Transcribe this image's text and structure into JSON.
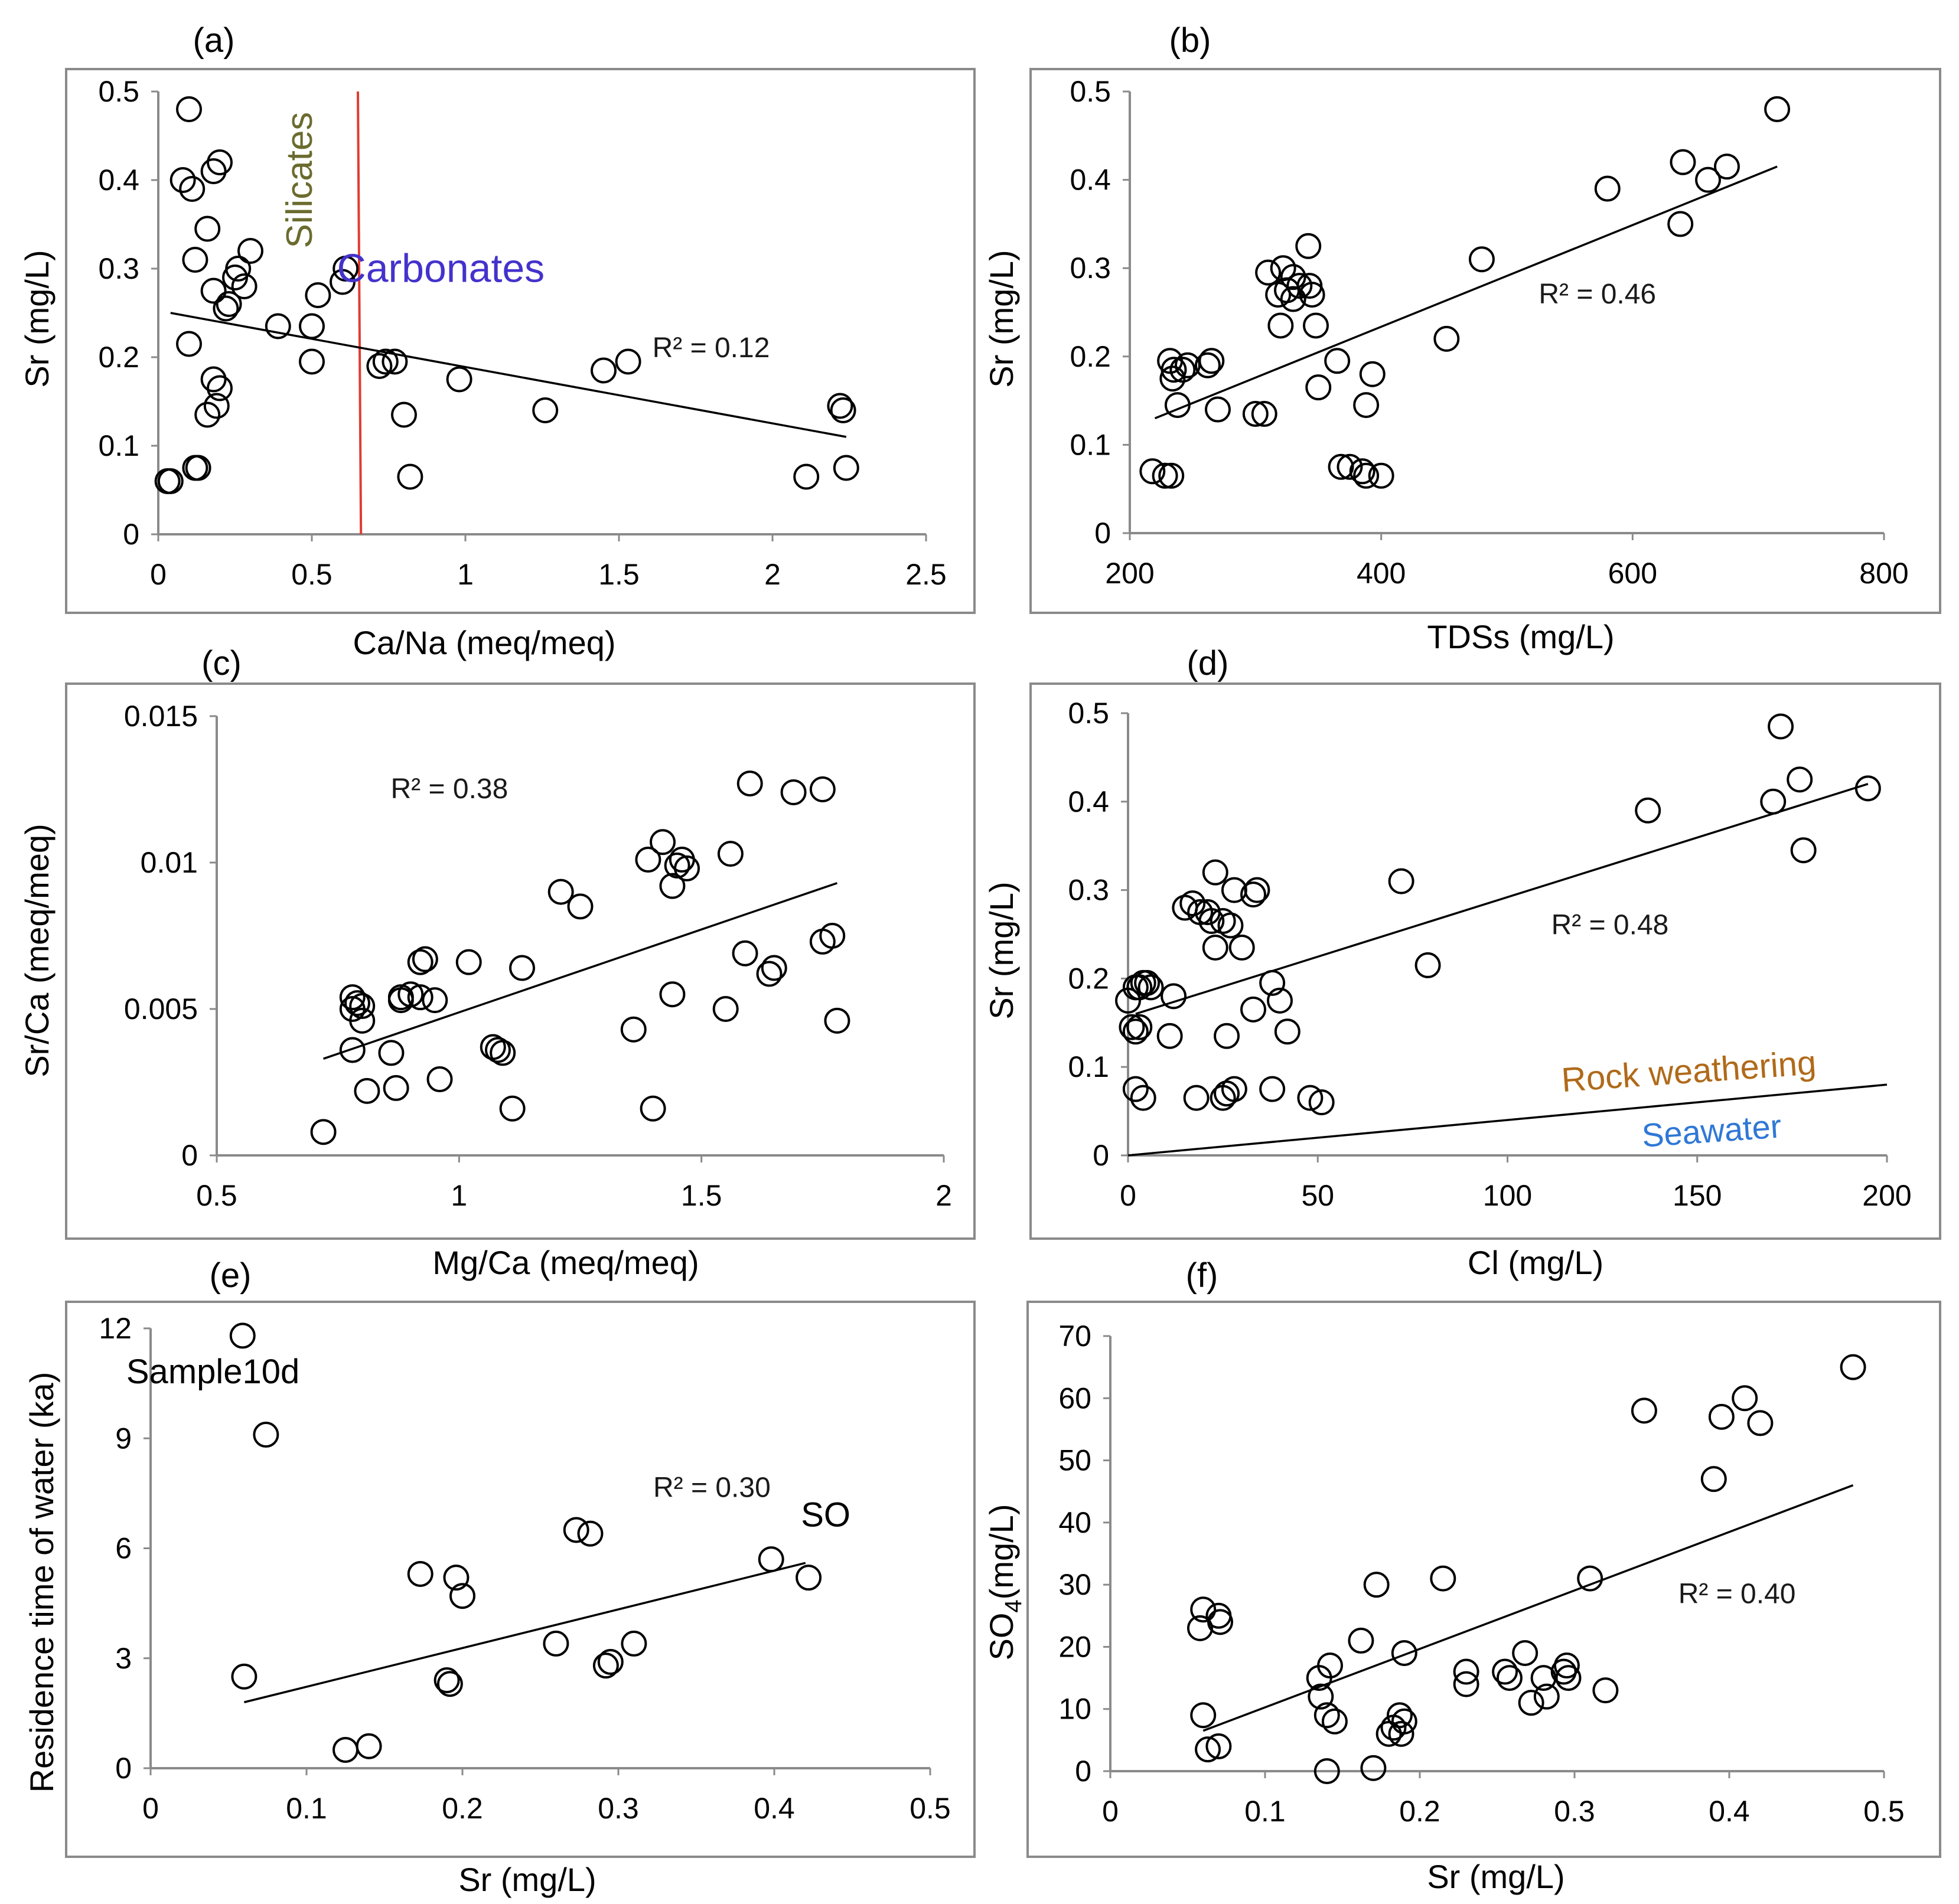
{
  "chart_data": [
    {
      "id": "a",
      "type": "scatter",
      "panel_label": "(a)",
      "xlabel": "Ca/Na (meq/meq)",
      "ylabel": "Sr (mg/L)",
      "xlim": [
        0,
        2.5
      ],
      "ylim": [
        0,
        0.5
      ],
      "xticks": [
        0,
        0.5,
        1,
        1.5,
        2,
        2.5
      ],
      "xtick_labels": [
        "0",
        "0.5",
        "1",
        "1.5",
        "2",
        "2.5"
      ],
      "yticks": [
        0,
        0.1,
        0.2,
        0.3,
        0.4,
        0.5
      ],
      "ytick_labels": [
        "0",
        "0.1",
        "0.2",
        "0.3",
        "0.4",
        "0.5"
      ],
      "r2_label": "R² = 0.12",
      "r2_pos": [
        1.8,
        0.2
      ],
      "trendline": {
        "x": [
          0.04,
          2.24
        ],
        "y": [
          0.25,
          0.11
        ]
      },
      "points": {
        "x": [
          0.1,
          0.08,
          0.11,
          0.2,
          0.18,
          0.16,
          0.3,
          0.12,
          0.26,
          0.25,
          0.28,
          0.18,
          0.23,
          0.22,
          0.39,
          0.5,
          0.52,
          0.6,
          0.61,
          0.1,
          0.5,
          0.18,
          0.2,
          0.16,
          0.19,
          0.12,
          0.13,
          0.03,
          0.04,
          0.72,
          0.74,
          0.77,
          0.8,
          0.82,
          0.98,
          1.26,
          1.45,
          1.53,
          2.22,
          2.23,
          2.11,
          2.24
        ],
        "y": [
          0.48,
          0.4,
          0.39,
          0.42,
          0.41,
          0.345,
          0.32,
          0.31,
          0.3,
          0.29,
          0.28,
          0.275,
          0.26,
          0.255,
          0.235,
          0.235,
          0.27,
          0.285,
          0.3,
          0.215,
          0.195,
          0.175,
          0.165,
          0.135,
          0.145,
          0.075,
          0.075,
          0.06,
          0.06,
          0.19,
          0.195,
          0.195,
          0.135,
          0.065,
          0.175,
          0.14,
          0.185,
          0.195,
          0.145,
          0.14,
          0.065,
          0.075
        ]
      },
      "annotations": [
        {
          "text": "Silicates",
          "x": 0.5,
          "y": 0.4,
          "rotate": -90,
          "color": "#6b6b2f"
        },
        {
          "text": "Carbonates",
          "x": 0.92,
          "y": 0.285,
          "rotate": 0,
          "color": "#4432cc"
        }
      ],
      "divider": {
        "x": [
          0.65,
          0.66
        ],
        "y": [
          0.5,
          0
        ],
        "color": "#e03c31"
      }
    },
    {
      "id": "b",
      "type": "scatter",
      "panel_label": "(b)",
      "xlabel": "TDSs (mg/L)",
      "ylabel": "Sr (mg/L)",
      "xlim": [
        200,
        800
      ],
      "ylim": [
        0,
        0.5
      ],
      "xticks": [
        200,
        400,
        600,
        800
      ],
      "xtick_labels": [
        "200",
        "400",
        "600",
        "800"
      ],
      "yticks": [
        0,
        0.1,
        0.2,
        0.3,
        0.4,
        0.5
      ],
      "ytick_labels": [
        "0",
        "0.1",
        "0.2",
        "0.3",
        "0.4",
        "0.5"
      ],
      "r2_label": "R² = 0.46",
      "r2_pos": [
        572,
        0.26
      ],
      "trendline": {
        "x": [
          220,
          715
        ],
        "y": [
          0.13,
          0.415
        ]
      },
      "points": {
        "x": [
          715,
          640,
          675,
          660,
          580,
          638,
          480,
          452,
          310,
          322,
          330,
          335,
          342,
          325,
          318,
          330,
          345,
          348,
          343,
          320,
          232,
          246,
          235,
          242,
          262,
          265,
          234,
          238,
          270,
          300,
          307,
          350,
          365,
          393,
          388,
          368,
          375,
          385,
          388,
          400,
          218,
          228,
          233
        ],
        "y": [
          0.48,
          0.42,
          0.415,
          0.4,
          0.39,
          0.35,
          0.31,
          0.22,
          0.295,
          0.3,
          0.29,
          0.28,
          0.325,
          0.275,
          0.27,
          0.265,
          0.27,
          0.235,
          0.28,
          0.235,
          0.195,
          0.19,
          0.185,
          0.185,
          0.19,
          0.195,
          0.175,
          0.145,
          0.14,
          0.135,
          0.135,
          0.165,
          0.195,
          0.18,
          0.145,
          0.075,
          0.075,
          0.07,
          0.065,
          0.065,
          0.07,
          0.065,
          0.065
        ]
      }
    },
    {
      "id": "c",
      "type": "scatter",
      "panel_label": "(c)",
      "xlabel": "Mg/Ca (meq/meq)",
      "ylabel": "Sr/Ca (meq/meq)",
      "xlim": [
        0.5,
        2
      ],
      "ylim": [
        0,
        0.015
      ],
      "xticks": [
        0.5,
        1,
        1.5,
        2
      ],
      "xtick_labels": [
        "0.5",
        "1",
        "1.5",
        "2"
      ],
      "yticks": [
        0,
        0.005,
        0.01,
        0.015
      ],
      "ytick_labels": [
        "0",
        "0.005",
        "0.01",
        "0.015"
      ],
      "r2_label": "R² = 0.38",
      "r2_pos": [
        0.98,
        0.0122
      ],
      "trendline": {
        "x": [
          0.72,
          1.78
        ],
        "y": [
          0.0033,
          0.0093
        ]
      },
      "points": {
        "x": [
          0.72,
          0.78,
          0.8,
          0.78,
          0.79,
          0.8,
          0.78,
          0.86,
          0.88,
          0.92,
          0.93,
          0.95,
          1.02,
          0.88,
          0.92,
          0.9,
          1.13,
          1.21,
          1.25,
          1.09,
          1.08,
          1.07,
          1.11,
          0.96,
          0.81,
          0.87,
          1.36,
          1.44,
          1.4,
          1.46,
          1.47,
          1.45,
          1.42,
          1.44,
          1.39,
          1.56,
          1.6,
          1.59,
          1.69,
          1.75,
          1.55,
          1.64,
          1.65,
          1.75,
          1.77,
          1.78
        ],
        "y": [
          0.0008,
          0.0036,
          0.0046,
          0.0054,
          0.0052,
          0.0051,
          0.005,
          0.0035,
          0.0053,
          0.0054,
          0.0067,
          0.0053,
          0.0066,
          0.0054,
          0.0066,
          0.0055,
          0.0064,
          0.009,
          0.0085,
          0.0035,
          0.0036,
          0.0037,
          0.0016,
          0.0026,
          0.0022,
          0.0023,
          0.0043,
          0.0055,
          0.0016,
          0.0101,
          0.0098,
          0.0099,
          0.0107,
          0.0092,
          0.0101,
          0.0103,
          0.0127,
          0.0069,
          0.0124,
          0.0125,
          0.005,
          0.0062,
          0.0064,
          0.0073,
          0.0075,
          0.0046
        ]
      }
    },
    {
      "id": "d",
      "type": "scatter",
      "panel_label": "(d)",
      "xlabel": "Cl (mg/L)",
      "ylabel": "Sr (mg/L)",
      "xlim": [
        0,
        200
      ],
      "ylim": [
        0,
        0.5
      ],
      "xticks": [
        0,
        50,
        100,
        150,
        200
      ],
      "xtick_labels": [
        "0",
        "50",
        "100",
        "150",
        "200"
      ],
      "yticks": [
        0,
        0.1,
        0.2,
        0.3,
        0.4,
        0.5
      ],
      "ytick_labels": [
        "0",
        "0.1",
        "0.2",
        "0.3",
        "0.4",
        "0.5"
      ],
      "r2_label": "R² = 0.48",
      "r2_pos": [
        127,
        0.25
      ],
      "trendline": {
        "x": [
          2,
          195
        ],
        "y": [
          0.16,
          0.42
        ]
      },
      "points": {
        "x": [
          172,
          177,
          195,
          170,
          178,
          137,
          72,
          79,
          23,
          15,
          17,
          21,
          19,
          22,
          25,
          27,
          30,
          28,
          33,
          34,
          23,
          2,
          3,
          4,
          5,
          6,
          0,
          1,
          2,
          3,
          12,
          11,
          26,
          33,
          38,
          40,
          42,
          28,
          26,
          18,
          25,
          38,
          48,
          51,
          2,
          4
        ],
        "y": [
          0.485,
          0.425,
          0.415,
          0.4,
          0.345,
          0.39,
          0.31,
          0.215,
          0.32,
          0.28,
          0.285,
          0.275,
          0.275,
          0.265,
          0.265,
          0.26,
          0.235,
          0.3,
          0.295,
          0.3,
          0.235,
          0.19,
          0.19,
          0.195,
          0.195,
          0.19,
          0.175,
          0.145,
          0.14,
          0.145,
          0.18,
          0.135,
          0.135,
          0.165,
          0.195,
          0.175,
          0.14,
          0.075,
          0.07,
          0.065,
          0.065,
          0.075,
          0.065,
          0.06,
          0.075,
          0.065
        ]
      },
      "reference_line": {
        "x": [
          0,
          200
        ],
        "y": [
          0,
          0.08
        ]
      },
      "annotations": [
        {
          "text": "Rock weathering",
          "x": 148,
          "y": 0.082,
          "rotate": -4,
          "color": "#b06a1a"
        },
        {
          "text": "Seawater",
          "x": 154,
          "y": 0.015,
          "rotate": -4,
          "color": "#2f78d6"
        }
      ]
    },
    {
      "id": "e",
      "type": "scatter",
      "panel_label": "(e)",
      "xlabel": "Sr (mg/L)",
      "ylabel": "Residence time of water (ka)",
      "xlim": [
        0,
        0.5
      ],
      "ylim": [
        0,
        12
      ],
      "xticks": [
        0,
        0.1,
        0.2,
        0.3,
        0.4,
        0.5
      ],
      "xtick_labels": [
        "0",
        "0.1",
        "0.2",
        "0.3",
        "0.4",
        "0.5"
      ],
      "yticks": [
        0,
        3,
        6,
        9,
        12
      ],
      "ytick_labels": [
        "0",
        "3",
        "6",
        "9",
        "12"
      ],
      "r2_label": "R² = 0.30",
      "r2_pos": [
        0.36,
        7.4
      ],
      "trendline": {
        "x": [
          0.06,
          0.42
        ],
        "y": [
          1.8,
          5.6
        ]
      },
      "points": {
        "x": [
          0.059,
          0.074,
          0.06,
          0.125,
          0.14,
          0.173,
          0.196,
          0.2,
          0.19,
          0.192,
          0.26,
          0.273,
          0.282,
          0.292,
          0.295,
          0.31,
          0.398,
          0.422
        ],
        "y": [
          11.8,
          9.1,
          2.5,
          0.5,
          0.6,
          5.3,
          5.2,
          4.7,
          2.4,
          2.3,
          3.4,
          6.5,
          6.4,
          2.8,
          2.9,
          3.4,
          5.7,
          5.2
        ]
      },
      "annotations": [
        {
          "text": "Sample10d",
          "x": 0.04,
          "y": 10.5,
          "rotate": 0,
          "color": "#000000"
        },
        {
          "text": "SO",
          "x": 0.433,
          "y": 6.6,
          "rotate": 0,
          "color": "#000000"
        }
      ]
    },
    {
      "id": "f",
      "type": "scatter",
      "panel_label": "(f)",
      "xlabel": "Sr (mg/L)",
      "ylabel": "SO4(mg/L)",
      "ylabel_base": "SO",
      "ylabel_sub": "4",
      "ylabel_rest": "(mg/L)",
      "xlim": [
        0,
        0.5
      ],
      "ylim": [
        0,
        70
      ],
      "xticks": [
        0,
        0.1,
        0.2,
        0.3,
        0.4,
        0.5
      ],
      "xtick_labels": [
        "0",
        "0.1",
        "0.2",
        "0.3",
        "0.4",
        "0.5"
      ],
      "yticks": [
        0,
        10,
        20,
        30,
        40,
        50,
        60,
        70
      ],
      "ytick_labels": [
        "0",
        "10",
        "20",
        "30",
        "40",
        "50",
        "60",
        "70"
      ],
      "r2_label": "R² = 0.40",
      "r2_pos": [
        0.405,
        27
      ],
      "trendline": {
        "x": [
          0.06,
          0.48
        ],
        "y": [
          6.5,
          46
        ]
      },
      "points": {
        "x": [
          0.48,
          0.41,
          0.395,
          0.42,
          0.345,
          0.39,
          0.06,
          0.07,
          0.071,
          0.058,
          0.06,
          0.07,
          0.063,
          0.215,
          0.172,
          0.31,
          0.162,
          0.19,
          0.142,
          0.135,
          0.136,
          0.145,
          0.14,
          0.23,
          0.23,
          0.255,
          0.258,
          0.268,
          0.28,
          0.295,
          0.296,
          0.293,
          0.272,
          0.282,
          0.32,
          0.187,
          0.19,
          0.183,
          0.18,
          0.188,
          0.14,
          0.17
        ],
        "y": [
          65,
          60,
          57,
          56,
          58,
          47,
          26,
          25,
          24,
          23,
          9,
          4,
          3.5,
          31,
          30,
          31,
          21,
          19,
          17,
          15,
          12,
          8,
          9,
          16,
          14,
          16,
          15,
          19,
          15,
          17,
          15,
          16,
          11,
          12,
          13,
          9,
          8,
          7,
          6,
          6,
          0,
          0.5
        ]
      }
    }
  ]
}
